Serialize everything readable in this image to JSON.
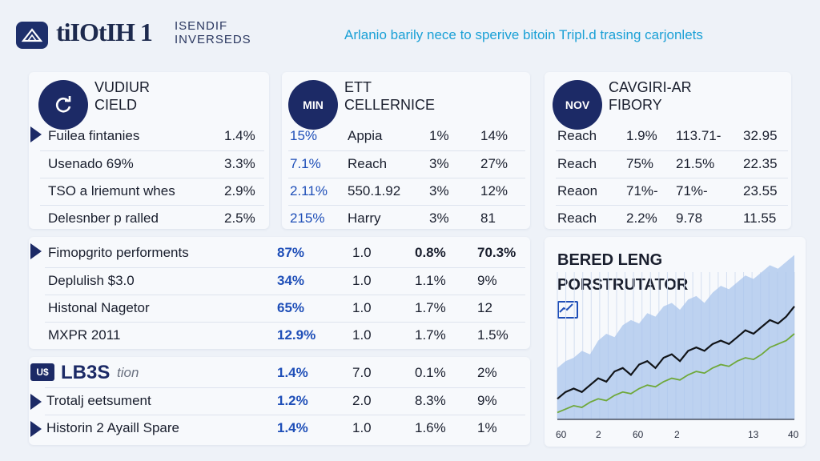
{
  "header": {
    "brand_main": "tiIOtIH 1",
    "brand_sub": "ISENDIF INVERSEDS",
    "tagline": "Arlanio barily nece to sperive bitoin Tripl.d trasing carjonlets"
  },
  "card1": {
    "badge": "",
    "title_line1": "VUDIUR",
    "title_line2": "CIELD",
    "rows": [
      {
        "label": "Fuilea fintanies",
        "value": "1.4%"
      },
      {
        "label": "Usenado 69%",
        "value": "3.3%"
      },
      {
        "label": "TSO a lriemunt whes",
        "value": "2.9%"
      },
      {
        "label": "Delesnber p ralled",
        "value": "2.5%"
      }
    ]
  },
  "card2": {
    "badge": "MIN",
    "title_line1": "ETT",
    "title_line2": "CELLERNICE",
    "rows": [
      {
        "a": "15%",
        "b": "Appia",
        "c": "1%",
        "d": "14%"
      },
      {
        "a": "7.1%",
        "b": "Reach",
        "c": "3%",
        "d": "27%"
      },
      {
        "a": "2.11%",
        "b": "550.1.92",
        "c": "3%",
        "d": "12%"
      },
      {
        "a": "215%",
        "b": "Harry",
        "c": "3%",
        "d": "81"
      }
    ]
  },
  "card3": {
    "badge": "NOV",
    "title_line1": "CAVGIRI-AR",
    "title_line2": "FIBORY",
    "rows": [
      {
        "a": "Reach",
        "b": "1.9%",
        "c": "113.71-",
        "d": "32.95"
      },
      {
        "a": "Reach",
        "b": "75%",
        "c": "21.5%",
        "d": "22.35"
      },
      {
        "a": "Reaon",
        "b": "71%-",
        "c": "71%-",
        "d": "23.55"
      },
      {
        "a": "Reach",
        "b": "2.2%",
        "c": "9.78",
        "d": "11.55"
      }
    ]
  },
  "card4": {
    "rows": [
      {
        "label": "Fimopgrito performents",
        "a": "87%",
        "b": "1.0",
        "c": "0.8%",
        "d": "70.3%"
      },
      {
        "label": "Deplulish $3.0",
        "a": "34%",
        "b": "1.0",
        "c": "1.1%",
        "d": "9%"
      },
      {
        "label": "Histonal Nagetor",
        "a": "65%",
        "b": "1.0",
        "c": "1.7%",
        "d": "12"
      },
      {
        "label": "MXPR 2011",
        "a": "12.9%",
        "b": "1.0",
        "c": "1.7%",
        "d": "1.5%"
      }
    ]
  },
  "card5": {
    "logo_text": "LB3S",
    "logo_sub": "tion",
    "rows": [
      {
        "label": "",
        "a": "1.4%",
        "b": "7.0",
        "c": "0.1%",
        "d": "2%"
      },
      {
        "label": "Trotalj eetsument",
        "a": "1.2%",
        "b": "2.0",
        "c": "8.3%",
        "d": "9%"
      },
      {
        "label": "Historin 2 Ayaill Spare",
        "a": "1.4%",
        "b": "1.0",
        "c": "1.6%",
        "d": "1%"
      }
    ]
  },
  "chart_data": {
    "type": "area",
    "title": "BERED LENG PORSTRUTATOR",
    "xlabel": "",
    "ylabel": "",
    "x_tick_labels": [
      "60",
      "2",
      "60",
      "2",
      "13",
      "40"
    ],
    "ylim": [
      0,
      100
    ],
    "series": [
      {
        "values": [
          30,
          34,
          36,
          40,
          38,
          46,
          50,
          48,
          55,
          58,
          56,
          62,
          60,
          66,
          68,
          64,
          70,
          72,
          68,
          74,
          78,
          76,
          80,
          84,
          82,
          86,
          90,
          88,
          92,
          96
        ]
      },
      {
        "values": [
          12,
          16,
          18,
          16,
          20,
          24,
          22,
          28,
          30,
          26,
          32,
          34,
          30,
          36,
          38,
          34,
          40,
          42,
          40,
          44,
          46,
          44,
          48,
          52,
          50,
          54,
          58,
          56,
          60,
          66
        ]
      },
      {
        "values": [
          4,
          6,
          8,
          7,
          10,
          12,
          11,
          14,
          16,
          15,
          18,
          20,
          19,
          22,
          24,
          23,
          26,
          28,
          27,
          30,
          32,
          31,
          34,
          36,
          35,
          38,
          42,
          44,
          46,
          50
        ]
      }
    ],
    "colors": {
      "area": "#a9c4ec",
      "line_dark": "#111418",
      "line_green": "#6fa83a"
    }
  }
}
